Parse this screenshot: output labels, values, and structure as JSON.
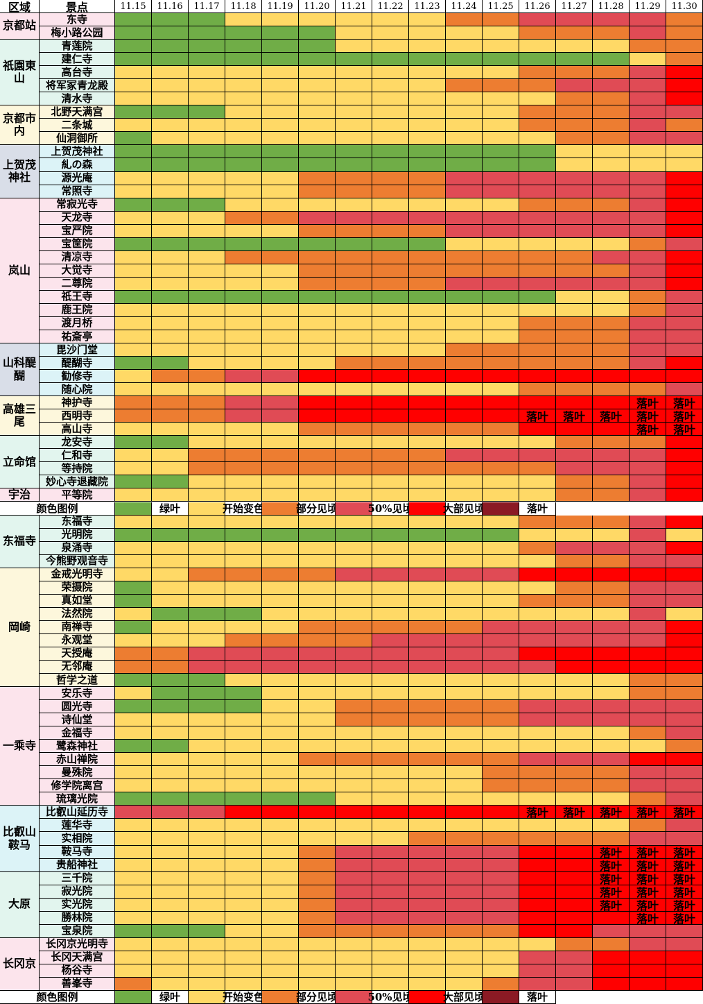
{
  "header": {
    "region_label": "区域",
    "spot_label": "景点"
  },
  "legend_title": "颜色图例",
  "chart_data": {
    "type": "heatmap",
    "dates": [
      "11.15",
      "11.16",
      "11.17",
      "11.18",
      "11.19",
      "11.20",
      "11.21",
      "11.22",
      "11.23",
      "11.24",
      "11.25",
      "11.26",
      "11.27",
      "11.28",
      "11.29",
      "11.30"
    ],
    "legend": [
      {
        "code": "G",
        "label": "绿叶",
        "color": "#70AD47"
      },
      {
        "code": "Y",
        "label": "开始变色",
        "color": "#FFD966"
      },
      {
        "code": "O",
        "label": "部分见顷",
        "color": "#ED7D31"
      },
      {
        "code": "P",
        "label": "50%见顷",
        "color": "#E04B55"
      },
      {
        "code": "R",
        "label": "大部见顷",
        "color": "#FF0000"
      },
      {
        "code": "D",
        "label": "落叶",
        "color": "#8B1A24"
      }
    ],
    "fall_marker": "落叶",
    "regions": [
      {
        "name": "京都站",
        "bg": "#FCE4EC",
        "spots": [
          {
            "name": "东寺",
            "bg": "#FCE4EC",
            "values": "GGGYYYYYYOOPPPPO"
          },
          {
            "name": "梅小路公园",
            "bg": "#FCE4EC",
            "values": "GGGGGGYYYYYOOOPO"
          }
        ]
      },
      {
        "name": "祇園東山",
        "bg": "#E2F5EE",
        "spots": [
          {
            "name": "青莲院",
            "bg": "#E2F5EE",
            "values": "GGGGGGYYYYYYYYOO"
          },
          {
            "name": "建仁寺",
            "bg": "#E2F5EE",
            "values": "GGGGGGGGGGGGGGYO"
          },
          {
            "name": "高台寺",
            "bg": "#E2F5EE",
            "values": "YYYYYYYYYYYOOOPR"
          },
          {
            "name": "将军冢青龙殿",
            "bg": "#E2F5EE",
            "values": "YYYYYYYYYOOOPPPR"
          },
          {
            "name": "清水寺",
            "bg": "#E2F5EE",
            "values": "YYYYYYYYYYYYOOPR"
          }
        ]
      },
      {
        "name": "京都市内",
        "bg": "#FDF7DC",
        "spots": [
          {
            "name": "北野天满宫",
            "bg": "#FDF7DC",
            "values": "GGGYYYYYYYYOOOPP"
          },
          {
            "name": "二条城",
            "bg": "#FDF7DC",
            "values": "YYYYYYYYYYYOOOPO"
          },
          {
            "name": "仙洞御所",
            "bg": "#FDF7DC",
            "values": "GYYYYYYYYYYYOOPP"
          }
        ]
      },
      {
        "name": "上贺茂神社",
        "bg": "#D9DEE8",
        "spots": [
          {
            "name": "上贺茂神社",
            "bg": "#DCF3F7",
            "values": "GGGGGGGGGGGGYYYY"
          },
          {
            "name": "糺の森",
            "bg": "#DCF3F7",
            "values": "GGGGGGGGGGGGYYYY"
          },
          {
            "name": "源光庵",
            "bg": "#DCF3F7",
            "values": "YYYYYOOOOPPPPPPR"
          },
          {
            "name": "常照寺",
            "bg": "#DCF3F7",
            "values": "YYYYYOOOOPPPPPPR"
          }
        ]
      },
      {
        "name": "岚山",
        "bg": "#FCE4EC",
        "spots": [
          {
            "name": "常寂光寺",
            "bg": "#FCE4EC",
            "values": "GGGYYYYYYYYOOOPR"
          },
          {
            "name": "天龙寺",
            "bg": "#FCE4EC",
            "values": "YYYOOPPPPPPPPPPR"
          },
          {
            "name": "宝严院",
            "bg": "#FCE4EC",
            "values": "YYYYYOOOOPPPPPPR"
          },
          {
            "name": "宝筐院",
            "bg": "#FCE4EC",
            "values": "GGGGGGGGGYYYYYOP"
          },
          {
            "name": "清凉寺",
            "bg": "#FCE4EC",
            "values": "YYYOOOOOOOOOOPPR"
          },
          {
            "name": "大觉寺",
            "bg": "#FCE4EC",
            "values": "YYYYYOOOOOOOOOPR"
          },
          {
            "name": "二尊院",
            "bg": "#FCE4EC",
            "values": "YYYYYOOOOPPPPPPR"
          },
          {
            "name": "祇王寺",
            "bg": "#FCE4EC",
            "values": "GGGGGGGGGGGGYYOP"
          },
          {
            "name": "鹿王院",
            "bg": "#FCE4EC",
            "values": "YYYYYYYYYYYYYYOP"
          },
          {
            "name": "渡月桥",
            "bg": "#FCE4EC",
            "values": "YYYYYYYYYYYOOOPP"
          },
          {
            "name": "祐斎亭",
            "bg": "#FCE4EC",
            "values": "YYYYYYYYYYYOOOPP"
          }
        ]
      },
      {
        "name": "山科醍醐",
        "bg": "#D9DEE8",
        "spots": [
          {
            "name": "毘沙门堂",
            "bg": "#DCF3F7",
            "values": "YYYYYYYYYOOOOOPP"
          },
          {
            "name": "醍醐寺",
            "bg": "#DCF3F7",
            "values": "GGYYYYOOOOOOOOPR"
          },
          {
            "name": "勧修寺",
            "bg": "#DCF3F7",
            "values": "YOOPPRRRRRRRRRRR"
          },
          {
            "name": "随心院",
            "bg": "#DCF3F7",
            "values": "YYYYYYYYYYYOOOOP"
          }
        ]
      },
      {
        "name": "高雄三尾",
        "bg": "#FDF7DC",
        "spots": [
          {
            "name": "神护寺",
            "bg": "#FDF7DC",
            "values": "OOOPPRRRRRRRRRXX"
          },
          {
            "name": "西明寺",
            "bg": "#FDF7DC",
            "values": "OOOPPRRRRRRXXXXX"
          },
          {
            "name": "高山寺",
            "bg": "#FDF7DC",
            "values": "YYYYYOOOOOORRRXX"
          }
        ]
      },
      {
        "name": "立命馆",
        "bg": "#E2F5EE",
        "spots": [
          {
            "name": "龙安寺",
            "bg": "#E2F5EE",
            "values": "GGYYYYYYYYYYOOOR"
          },
          {
            "name": "仁和寺",
            "bg": "#E2F5EE",
            "values": "YYOOOOOOOPPPPPPR"
          },
          {
            "name": "等持院",
            "bg": "#E2F5EE",
            "values": "YYOOOOOOOOOOPPPR"
          },
          {
            "name": "妙心寺退藏院",
            "bg": "#E2F5EE",
            "values": "GGYYYYYYYYYYOOPR"
          }
        ]
      },
      {
        "name": "宇治",
        "bg": "#FCE4EC",
        "spots": [
          {
            "name": "平等院",
            "bg": "#FCE4EC",
            "values": "YYYYYYYYYYYYOOPR"
          }
        ]
      },
      {
        "legend_row": true
      },
      {
        "name": "东福寺",
        "bg": "#E2F5EE",
        "spots": [
          {
            "name": "东福寺",
            "bg": "#E2F5EE",
            "values": "YYYYYYYYYYYOOOPR"
          },
          {
            "name": "光明院",
            "bg": "#E2F5EE",
            "values": "GGGGGGGGGGGYYYPY"
          },
          {
            "name": "泉涌寺",
            "bg": "#E2F5EE",
            "values": "YYYYYYYYYYYOPPPR"
          },
          {
            "name": "今熊野观音寺",
            "bg": "#E2F5EE",
            "values": "YYYYYYYYYYYYOOPP"
          }
        ]
      },
      {
        "name": "岡崎",
        "bg": "#FDF7DC",
        "spots": [
          {
            "name": "金戒光明寺",
            "bg": "#FDF7DC",
            "values": "YYOOOOPPPPPRRRRR"
          },
          {
            "name": "荣摄院",
            "bg": "#FDF7DC",
            "values": "GYYYYYYYYYYYOOPP"
          },
          {
            "name": "真如堂",
            "bg": "#FDF7DC",
            "values": "GYYYYYYYYYYOOOPP"
          },
          {
            "name": "法然院",
            "bg": "#FDF7DC",
            "values": "YGGGYYYYYYYYYYPY"
          },
          {
            "name": "南禅寺",
            "bg": "#FDF7DC",
            "values": "GYYYYOOOOOPPPPPR"
          },
          {
            "name": "永观堂",
            "bg": "#FDF7DC",
            "values": "YYYOOOOPPPPPPPPR"
          },
          {
            "name": "天授庵",
            "bg": "#FDF7DC",
            "values": "OOPPPPPPPPPRRRRR"
          },
          {
            "name": "无邻庵",
            "bg": "#FDF7DC",
            "values": "OOPPPPPPPPPPRRRR"
          },
          {
            "name": "哲学之道",
            "bg": "#FDF7DC",
            "values": "GGGYYYYYYYYYYYOO"
          }
        ]
      },
      {
        "name": "一乘寺",
        "bg": "#FCE4EC",
        "spots": [
          {
            "name": "安乐寺",
            "bg": "#FCE4EC",
            "values": "YGGGYYYYYYYYYYOO"
          },
          {
            "name": "圆光寺",
            "bg": "#FCE4EC",
            "values": "GGGGYYOOOOOPPPPP"
          },
          {
            "name": "诗仙堂",
            "bg": "#FCE4EC",
            "values": "YYYYYYOOOOOPPPPP"
          },
          {
            "name": "金福寺",
            "bg": "#FCE4EC",
            "values": "YYYYYYYYYYYYYYOP"
          },
          {
            "name": "鹭森神社",
            "bg": "#FCE4EC",
            "values": "GGYYYYYYYYYYYYYO"
          },
          {
            "name": "赤山禅院",
            "bg": "#FCE4EC",
            "values": "YYYYYOOOOOOPPPRR"
          },
          {
            "name": "曼殊院",
            "bg": "#FCE4EC",
            "values": "YYYYYYYYYYOOOOPP"
          },
          {
            "name": "修学院离宫",
            "bg": "#FCE4EC",
            "values": "YYYYYYYYYYOOOOPP"
          },
          {
            "name": "琉璃光院",
            "bg": "#FCE4EC",
            "values": "GGGGGGYYYYYYYYOP"
          }
        ]
      },
      {
        "name": "比叡山鞍马",
        "bg": "#DCF3F7",
        "spots": [
          {
            "name": "比叡山延历寺",
            "bg": "#DCF3F7",
            "values": "PPPRRRRRRRRXXXXX"
          },
          {
            "name": "莲华寺",
            "bg": "#DCF3F7",
            "values": "YYYYYYYYYYYYYYOP"
          },
          {
            "name": "实相院",
            "bg": "#DCF3F7",
            "values": "YYYYYYYYOOOOOOPP"
          },
          {
            "name": "鞍马寺",
            "bg": "#DCF3F7",
            "values": "YYYYYOPPPPPRRXXX"
          },
          {
            "name": "贵船神社",
            "bg": "#DCF3F7",
            "values": "YYYYYOPPPPPRRXXX"
          }
        ]
      },
      {
        "name": "大原",
        "bg": "#E2F5EE",
        "spots": [
          {
            "name": "三千院",
            "bg": "#E2F5EE",
            "values": "YYYYYOPPPPPRRXXX"
          },
          {
            "name": "寂光院",
            "bg": "#E2F5EE",
            "values": "YYYYYOPPPPPRRXXX"
          },
          {
            "name": "实光院",
            "bg": "#E2F5EE",
            "values": "YYYYYOPPPPPRRXXX"
          },
          {
            "name": "勝林院",
            "bg": "#E2F5EE",
            "values": "YYYYYOPPPPPRRRXX"
          },
          {
            "name": "宝泉院",
            "bg": "#E2F5EE",
            "values": "GGGYYOOOOOORRPPP"
          }
        ]
      },
      {
        "name": "长冈京",
        "bg": "#FCE4EC",
        "spots": [
          {
            "name": "长冈京光明寺",
            "bg": "#FCE4EC",
            "values": "YYYYYYYYYYYYOOPP"
          },
          {
            "name": "长冈天满宫",
            "bg": "#FCE4EC",
            "values": "YYYYYYYYYYYPPRRR"
          },
          {
            "name": "杨谷寺",
            "bg": "#FCE4EC",
            "values": "YYYYYYYYYYYPPRRR"
          },
          {
            "name": "善峯寺",
            "bg": "#FCE4EC",
            "values": "OYYYYYYYYYOPPRRR"
          }
        ]
      },
      {
        "legend_row": true
      }
    ]
  }
}
